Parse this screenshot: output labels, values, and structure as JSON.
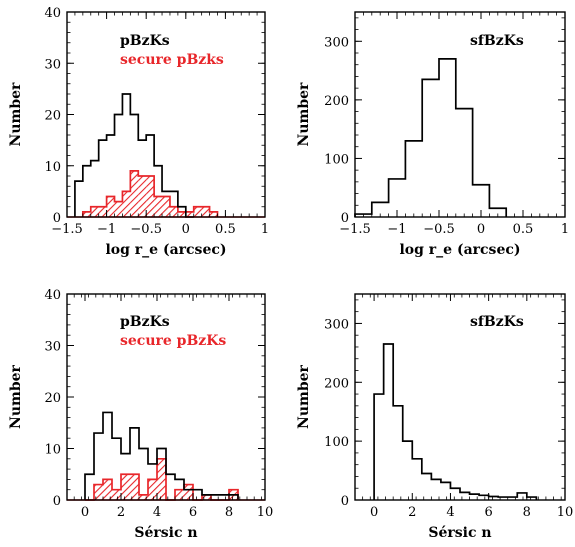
{
  "colors": {
    "all": "#000000",
    "secure": "#e8262a"
  },
  "chart_data": [
    {
      "type": "histogram",
      "xlabel": "log r_e (arcsec)",
      "ylabel": "Number",
      "xlim": [
        -1.5,
        1
      ],
      "ylim": [
        0,
        40
      ],
      "xticks": [
        -1.5,
        -1,
        -0.5,
        0,
        0.5,
        1
      ],
      "xtick_labels": [
        "−1.5",
        "−1",
        "−0.5",
        "0",
        "0.5",
        "1"
      ],
      "yticks": [
        0,
        10,
        20,
        30,
        40
      ],
      "ytick_labels": [
        "0",
        "10",
        "20",
        "30",
        "40"
      ],
      "legend": [
        "pBzKs",
        "secure pBzks"
      ],
      "series": [
        {
          "name": "pBzKs",
          "style": "outline",
          "edges": [
            -1.4,
            -1.3,
            -1.2,
            -1.1,
            -1.0,
            -0.9,
            -0.8,
            -0.7,
            -0.6,
            -0.5,
            -0.4,
            -0.3,
            -0.2,
            -0.1,
            0.0,
            0.1
          ],
          "values": [
            7,
            10,
            11,
            15,
            16,
            20,
            24,
            20,
            15,
            16,
            10,
            5,
            5,
            2,
            0
          ]
        },
        {
          "name": "secure pBzks",
          "style": "hatched",
          "edges": [
            -1.3,
            -1.2,
            -1.1,
            -1.0,
            -0.9,
            -0.8,
            -0.7,
            -0.6,
            -0.5,
            -0.4,
            -0.3,
            -0.2,
            -0.1,
            0.0,
            0.1,
            0.2,
            0.3,
            0.4
          ],
          "values": [
            1,
            2,
            2,
            4,
            3,
            5,
            9,
            8,
            8,
            4,
            4,
            2,
            1,
            1,
            2,
            2,
            1
          ]
        }
      ]
    },
    {
      "type": "histogram",
      "xlabel": "log r_e (arcsec)",
      "ylabel": "Number",
      "xlim": [
        -1.5,
        1
      ],
      "ylim": [
        0,
        350
      ],
      "xticks": [
        -1.5,
        -1,
        -0.5,
        0,
        0.5,
        1
      ],
      "xtick_labels": [
        "−1.5",
        "−1",
        "−0.5",
        "0",
        "0.5",
        "1"
      ],
      "yticks": [
        0,
        100,
        200,
        300
      ],
      "ytick_labels": [
        "0",
        "100",
        "200",
        "300"
      ],
      "legend": [
        "sfBzKs"
      ],
      "series": [
        {
          "name": "sfBzKs",
          "style": "outline",
          "edges": [
            -1.5,
            -1.3,
            -1.1,
            -0.9,
            -0.7,
            -0.5,
            -0.3,
            -0.1,
            0.1,
            0.3
          ],
          "values": [
            5,
            25,
            65,
            130,
            235,
            270,
            185,
            55,
            15
          ]
        }
      ]
    },
    {
      "type": "histogram",
      "xlabel": "Sérsic n",
      "ylabel": "Number",
      "xlim": [
        -1,
        10
      ],
      "ylim": [
        0,
        40
      ],
      "xticks": [
        0,
        2,
        4,
        6,
        8,
        10
      ],
      "xtick_labels": [
        "0",
        "2",
        "4",
        "6",
        "8",
        "10"
      ],
      "yticks": [
        0,
        10,
        20,
        30,
        40
      ],
      "ytick_labels": [
        "0",
        "10",
        "20",
        "30",
        "40"
      ],
      "legend": [
        "pBzKs",
        "secure pBzKs"
      ],
      "series": [
        {
          "name": "pBzKs",
          "style": "outline",
          "edges": [
            0,
            0.5,
            1,
            1.5,
            2,
            2.5,
            3,
            3.5,
            4,
            4.5,
            5,
            5.5,
            6,
            6.5,
            7,
            7.5,
            8,
            8.5
          ],
          "values": [
            5,
            13,
            17,
            12,
            9,
            14,
            10,
            7,
            10,
            5,
            4,
            2,
            2,
            1,
            1,
            1,
            1
          ]
        },
        {
          "name": "secure pBzKs",
          "style": "hatched",
          "edges": [
            0,
            0.5,
            1,
            1.5,
            2,
            2.5,
            3,
            3.5,
            4,
            4.5,
            5,
            5.5,
            6,
            6.5,
            7,
            7.5,
            8,
            8.5
          ],
          "values": [
            0,
            3,
            4,
            2,
            5,
            5,
            1,
            4,
            8,
            0,
            2,
            3,
            0,
            1,
            0,
            0,
            2
          ]
        }
      ]
    },
    {
      "type": "histogram",
      "xlabel": "Sérsic n",
      "ylabel": "Number",
      "xlim": [
        -1,
        10
      ],
      "ylim": [
        0,
        350
      ],
      "xticks": [
        0,
        2,
        4,
        6,
        8,
        10
      ],
      "xtick_labels": [
        "0",
        "2",
        "4",
        "6",
        "8",
        "10"
      ],
      "yticks": [
        0,
        100,
        200,
        300
      ],
      "ytick_labels": [
        "0",
        "100",
        "200",
        "300"
      ],
      "legend": [
        "sfBzKs"
      ],
      "series": [
        {
          "name": "sfBzKs",
          "style": "outline",
          "edges": [
            0,
            0.5,
            1,
            1.5,
            2,
            2.5,
            3,
            3.5,
            4,
            4.5,
            5,
            5.5,
            6,
            6.5,
            7,
            7.5,
            8,
            8.5
          ],
          "values": [
            180,
            265,
            160,
            100,
            70,
            45,
            35,
            30,
            20,
            13,
            10,
            8,
            6,
            5,
            5,
            12,
            5
          ]
        }
      ]
    }
  ]
}
